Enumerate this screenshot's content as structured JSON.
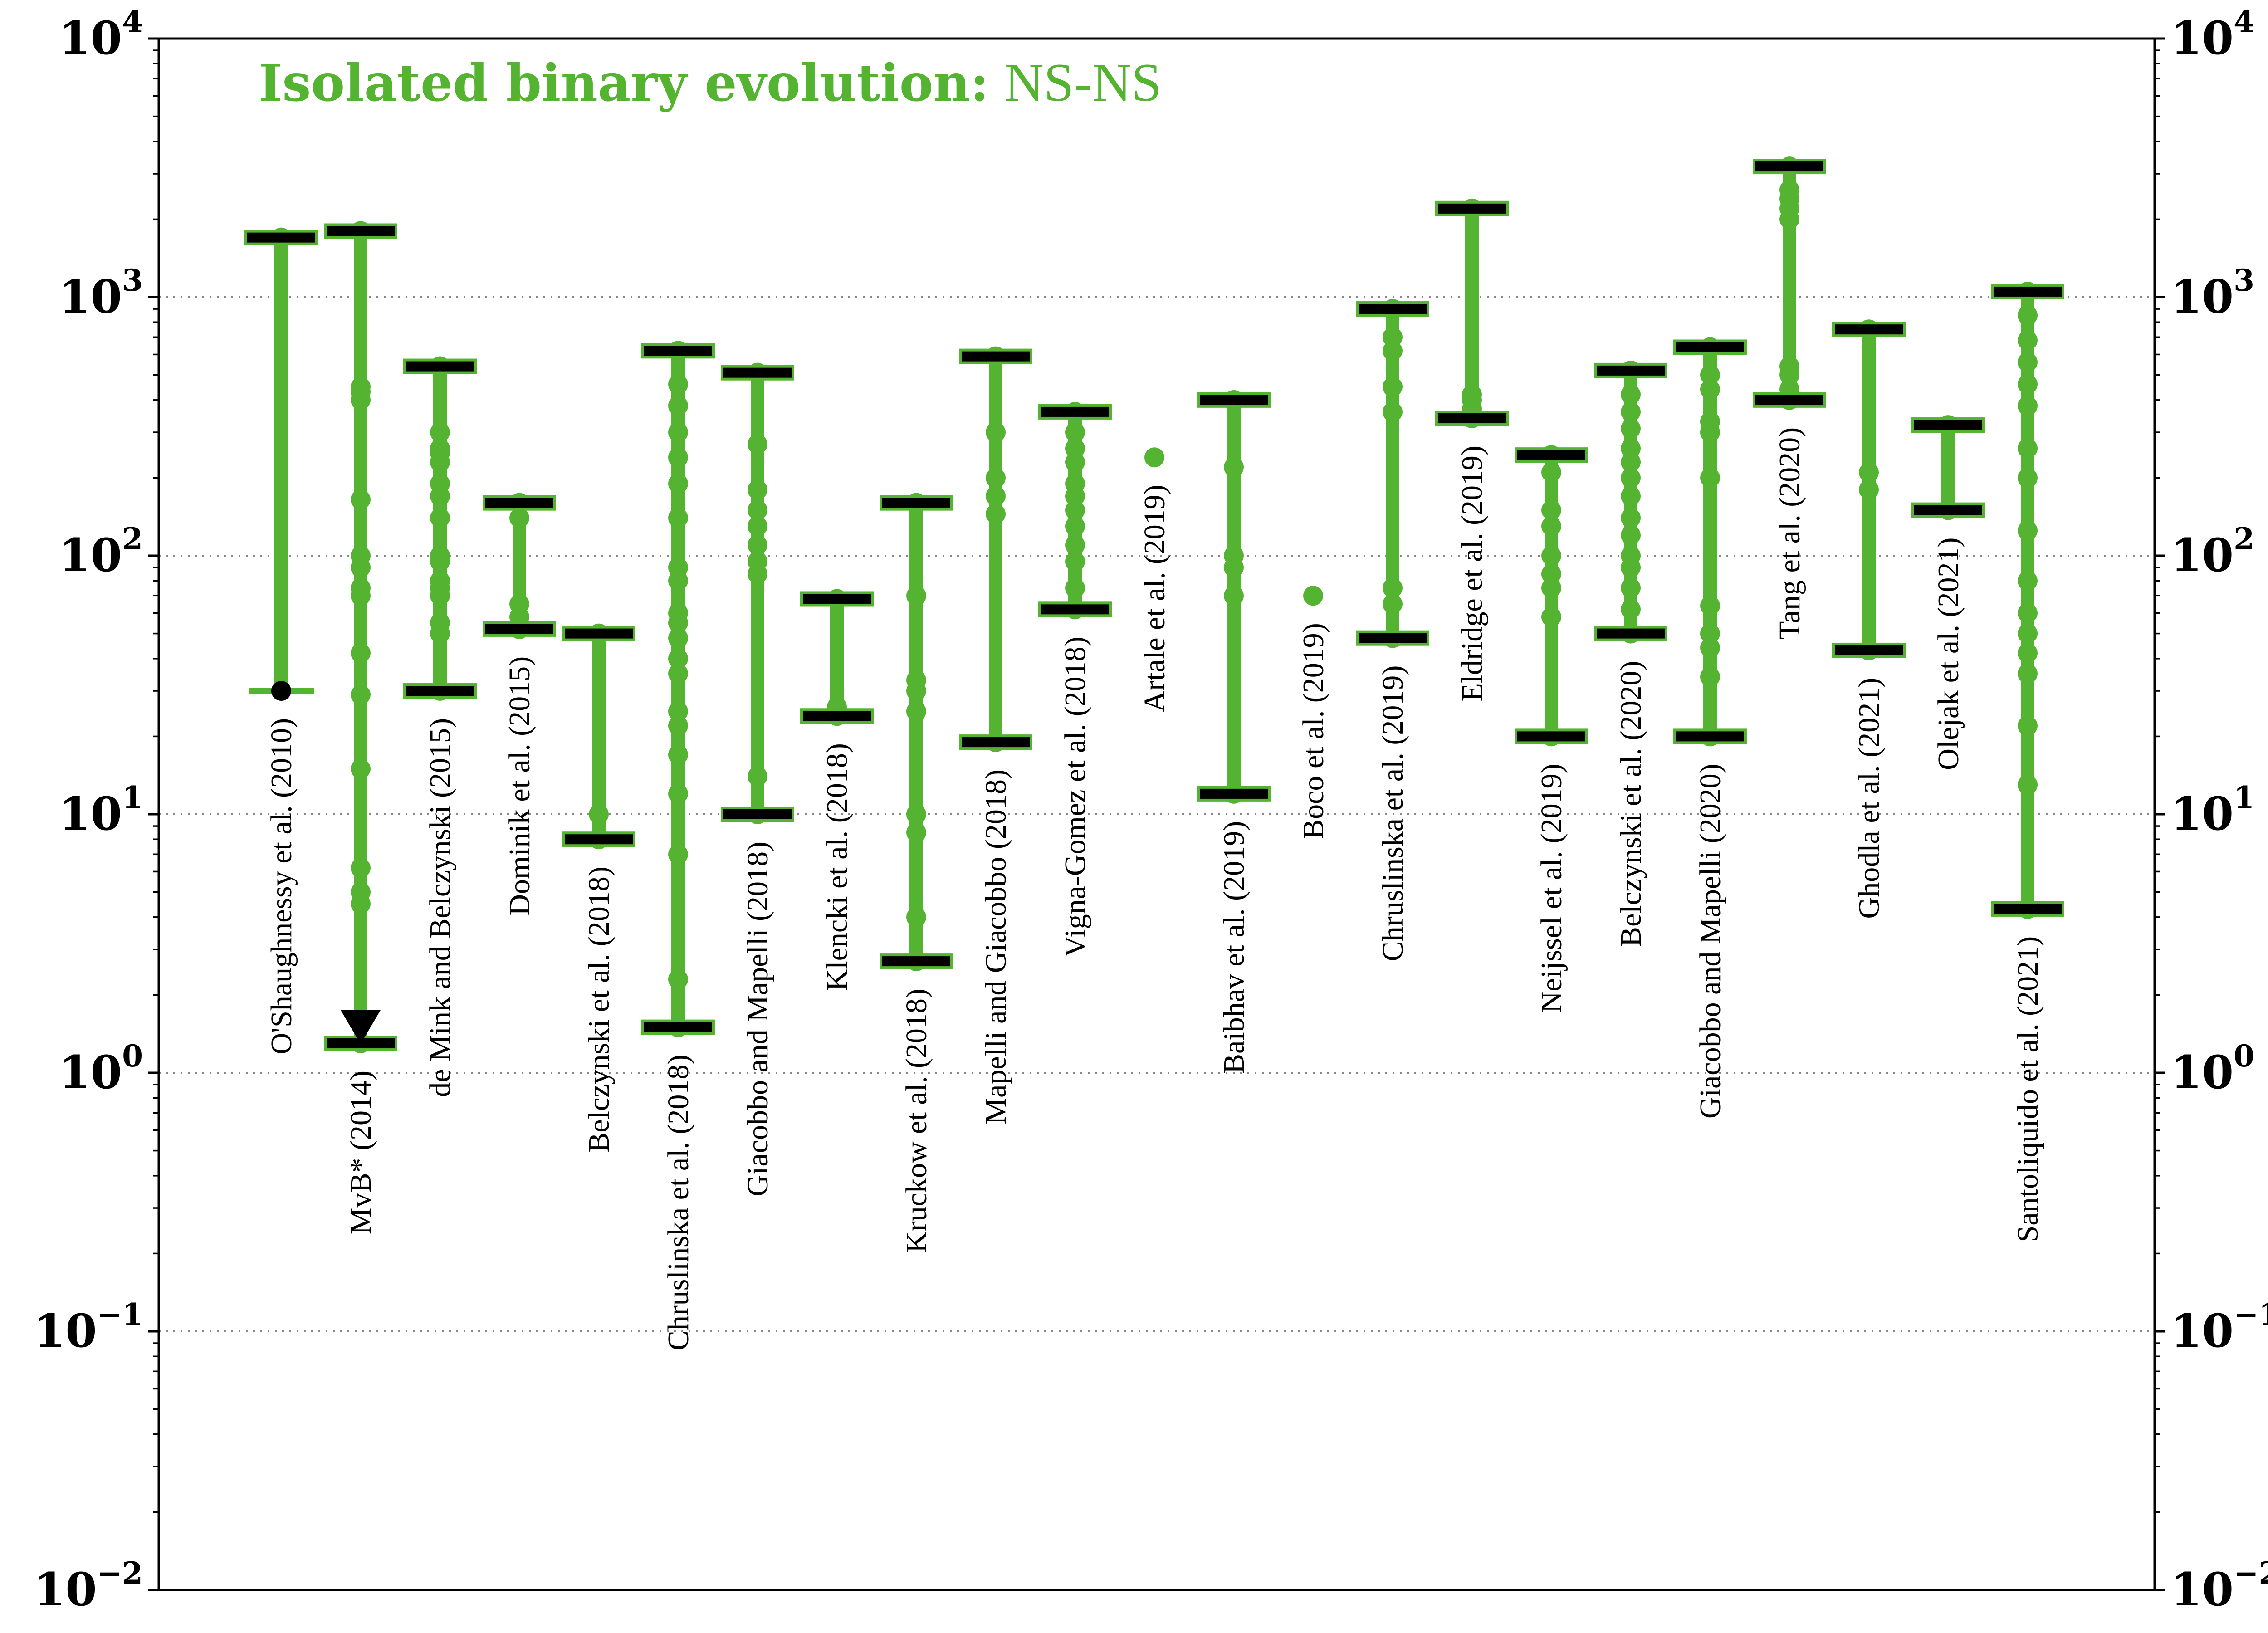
{
  "chart_data": {
    "type": "scatter",
    "title_bold": "Isolated binary evolution:",
    "title_plain": "NS-NS",
    "xlabel": "",
    "ylabel": "",
    "yscale": "log",
    "ylim": [
      0.01,
      10000
    ],
    "ytick_labels": [
      {
        "base": "10",
        "exp": "−2"
      },
      {
        "base": "10",
        "exp": "−1"
      },
      {
        "base": "10",
        "exp": "0"
      },
      {
        "base": "10",
        "exp": "1"
      },
      {
        "base": "10",
        "exp": "2"
      },
      {
        "base": "10",
        "exp": "3"
      },
      {
        "base": "10",
        "exp": "4"
      }
    ],
    "grid": "horizontal dotted at each decade",
    "colors": {
      "series": "#55b332",
      "caps": "#000000",
      "grid": "#888888"
    },
    "studies": [
      {
        "label": "O'Shaughnessy et al. (2010)",
        "low": 30,
        "high": 1700,
        "cap_low": "dot",
        "cap_high": "bar",
        "points": [
          30,
          1700
        ]
      },
      {
        "label": "MvB* (2014)",
        "low": 1.3,
        "high": 1800,
        "cap_low": "bar",
        "cap_high": "bar",
        "upper_limit_marker": 1.4,
        "points": [
          1.3,
          1.6,
          4.5,
          5,
          6.2,
          15,
          29,
          42,
          70,
          75,
          90,
          100,
          165,
          400,
          430,
          450,
          1800
        ]
      },
      {
        "label": "de Mink and Belczynski (2015)",
        "low": 30,
        "high": 540,
        "cap_low": "bar",
        "cap_high": "bar",
        "points": [
          30,
          50,
          55,
          70,
          75,
          80,
          95,
          100,
          140,
          170,
          190,
          230,
          250,
          260,
          300,
          540
        ]
      },
      {
        "label": "Dominik et al. (2015)",
        "low": 52,
        "high": 160,
        "cap_low": "bar",
        "cap_high": "bar",
        "points": [
          52,
          58,
          65,
          140,
          160
        ]
      },
      {
        "label": "Belczynski et al. (2018)",
        "low": 8,
        "high": 50,
        "cap_low": "bar",
        "cap_high": "bar",
        "points": [
          8,
          10,
          50
        ]
      },
      {
        "label": "Chruslinska et al. (2018)",
        "low": 1.5,
        "high": 620,
        "cap_low": "bar",
        "cap_high": "bar",
        "points": [
          1.5,
          2.3,
          7,
          12,
          17,
          22,
          25,
          35,
          40,
          48,
          55,
          60,
          80,
          90,
          140,
          190,
          240,
          300,
          380,
          460,
          620
        ]
      },
      {
        "label": "Giacobbo and Mapelli (2018)",
        "low": 10,
        "high": 510,
        "cap_low": "bar",
        "cap_high": "bar",
        "points": [
          10,
          14,
          85,
          95,
          110,
          130,
          150,
          180,
          270,
          510
        ]
      },
      {
        "label": "Klencki et al. (2018)",
        "low": 24,
        "high": 68,
        "cap_low": "bar",
        "cap_high": "bar",
        "points": [
          24,
          26,
          68
        ]
      },
      {
        "label": "Kruckow et al. (2018)",
        "low": 2.7,
        "high": 160,
        "cap_low": "bar",
        "cap_high": "bar",
        "points": [
          2.7,
          4,
          8.5,
          10,
          25,
          30,
          33,
          70,
          160
        ]
      },
      {
        "label": "Mapelli and Giacobbo (2018)",
        "low": 19,
        "high": 590,
        "cap_low": "bar",
        "cap_high": "bar",
        "points": [
          19,
          145,
          170,
          200,
          300,
          590
        ]
      },
      {
        "label": "Vigna-Gomez et al. (2018)",
        "low": 62,
        "high": 360,
        "cap_low": "bar",
        "cap_high": "bar",
        "points": [
          62,
          75,
          95,
          110,
          130,
          150,
          170,
          190,
          230,
          260,
          300,
          360
        ]
      },
      {
        "label": "Artale et al. (2019)",
        "points": [
          240
        ]
      },
      {
        "label": "Baibhav et al. (2019)",
        "low": 12,
        "high": 400,
        "cap_low": "bar",
        "cap_high": "bar",
        "points": [
          12,
          70,
          90,
          100,
          220,
          400
        ]
      },
      {
        "label": "Boco et al. (2019)",
        "points": [
          70
        ]
      },
      {
        "label": "Chruslinska et al. (2019)",
        "low": 48,
        "high": 900,
        "cap_low": "bar",
        "cap_high": "bar",
        "points": [
          48,
          65,
          75,
          360,
          450,
          620,
          700,
          900
        ]
      },
      {
        "label": "Eldridge et al. (2019)",
        "low": 340,
        "high": 2200,
        "cap_low": "bar",
        "cap_high": "bar",
        "points": [
          340,
          370,
          400,
          420,
          2200
        ]
      },
      {
        "label": "Neijssel et al. (2019)",
        "low": 20,
        "high": 245,
        "cap_low": "bar",
        "cap_high": "bar",
        "points": [
          20,
          58,
          75,
          85,
          100,
          130,
          150,
          210,
          245
        ]
      },
      {
        "label": "Belczynski et al. (2020)",
        "low": 50,
        "high": 520,
        "cap_low": "bar",
        "cap_high": "bar",
        "points": [
          50,
          62,
          75,
          90,
          100,
          120,
          140,
          170,
          200,
          230,
          260,
          310,
          360,
          420,
          520
        ]
      },
      {
        "label": "Giacobbo and Mapelli (2020)",
        "low": 20,
        "high": 640,
        "cap_low": "bar",
        "cap_high": "bar",
        "points": [
          20,
          34,
          44,
          50,
          64,
          200,
          300,
          330,
          440,
          500,
          640
        ]
      },
      {
        "label": "Tang et al. (2020)",
        "low": 400,
        "high": 3200,
        "cap_low": "bar",
        "cap_high": "bar",
        "points": [
          400,
          440,
          500,
          540,
          2000,
          2200,
          2400,
          2600,
          3200
        ]
      },
      {
        "label": "Ghodla et al. (2021)",
        "low": 43,
        "high": 750,
        "cap_low": "bar",
        "cap_high": "bar",
        "points": [
          43,
          180,
          210,
          750
        ]
      },
      {
        "label": "Olejak et al. (2021)",
        "low": 150,
        "high": 320,
        "cap_low": "bar",
        "cap_high": "bar",
        "points": [
          150,
          320
        ]
      },
      {
        "label": "Santoliquido et al. (2021)",
        "low": 4.3,
        "high": 1050,
        "cap_low": "bar",
        "cap_high": "bar",
        "points": [
          4.3,
          13,
          22,
          35,
          42,
          50,
          60,
          80,
          125,
          200,
          260,
          380,
          460,
          560,
          680,
          850,
          1050
        ]
      }
    ]
  }
}
